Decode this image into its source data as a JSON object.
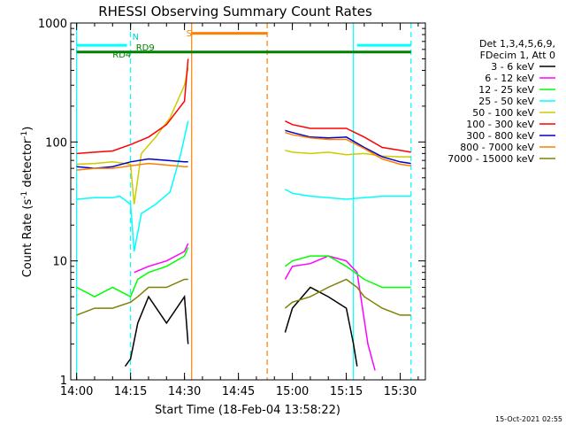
{
  "chart_data": {
    "type": "line",
    "title": "RHESSI Observing Summary Count Rates",
    "xlabel": "Start Time (18-Feb-04 13:58:22)",
    "ylabel_main": "Count Rate (s",
    "ylabel_sup1": "-1",
    "ylabel_mid": " detector",
    "ylabel_sup2": "-1",
    "ylabel_end": ")",
    "y_scale": "log",
    "ylim": [
      1,
      1000
    ],
    "xlim": [
      "13:58:22",
      "15:37:00"
    ],
    "x_ticks": [
      "14:00",
      "14:15",
      "14:30",
      "14:45",
      "15:00",
      "15:15",
      "15:30"
    ],
    "y_ticks": [
      "1",
      "10",
      "100",
      "1000"
    ],
    "legend_header": [
      "Det 1,3,4,5,6,9,",
      "FDecim 1, Att 0"
    ],
    "footer_date": "15-Oct-2021 02:55",
    "legend_position": "right",
    "flag_labels": {
      "n": "N",
      "s": "S",
      "rd4": "RD4",
      "rd9": "RD9"
    },
    "series": [
      {
        "name": "3 - 6 keV",
        "color": "#000000",
        "segments": [
          [
            [
              "14:13:30",
              1.3
            ],
            [
              "14:15",
              1.5
            ],
            [
              "14:17",
              3
            ],
            [
              "14:20",
              5
            ],
            [
              "14:25",
              3
            ],
            [
              "14:30",
              5
            ],
            [
              "14:31",
              2
            ]
          ],
          [
            [
              "14:58",
              2.5
            ],
            [
              "15:00",
              4
            ],
            [
              "15:05",
              6
            ],
            [
              "15:10",
              5
            ],
            [
              "15:15",
              4
            ],
            [
              "15:17",
              2
            ],
            [
              "15:18",
              1.3
            ]
          ]
        ]
      },
      {
        "name": "6 - 12 keV",
        "color": "#ff00ff",
        "segments": [
          [
            [
              "14:16",
              8
            ],
            [
              "14:20",
              9
            ],
            [
              "14:25",
              10
            ],
            [
              "14:30",
              12
            ],
            [
              "14:31",
              14
            ]
          ],
          [
            [
              "14:58",
              7
            ],
            [
              "15:00",
              9
            ],
            [
              "15:05",
              9.5
            ],
            [
              "15:10",
              11
            ],
            [
              "15:15",
              10
            ],
            [
              "15:18",
              8
            ],
            [
              "15:21",
              2
            ],
            [
              "15:23",
              1.2
            ]
          ]
        ]
      },
      {
        "name": "12 - 25 keV",
        "color": "#00ff00",
        "segments": [
          [
            [
              "14:00",
              6
            ],
            [
              "14:05",
              5
            ],
            [
              "14:10",
              6
            ],
            [
              "14:15",
              5
            ],
            [
              "14:17",
              7
            ],
            [
              "14:20",
              8
            ],
            [
              "14:25",
              9
            ],
            [
              "14:30",
              11
            ],
            [
              "14:31",
              13
            ]
          ],
          [
            [
              "14:58",
              9
            ],
            [
              "15:00",
              10
            ],
            [
              "15:05",
              11
            ],
            [
              "15:10",
              11
            ],
            [
              "15:15",
              9
            ],
            [
              "15:20",
              7
            ],
            [
              "15:25",
              6
            ],
            [
              "15:30",
              6
            ],
            [
              "15:33",
              6
            ]
          ]
        ]
      },
      {
        "name": "25 - 50 keV",
        "color": "#00ffff",
        "segments": [
          [
            [
              "14:00",
              33
            ],
            [
              "14:05",
              34
            ],
            [
              "14:10",
              34
            ],
            [
              "14:12",
              35
            ],
            [
              "14:15",
              30
            ],
            [
              "14:16",
              12
            ],
            [
              "14:18",
              25
            ],
            [
              "14:22",
              30
            ],
            [
              "14:26",
              38
            ],
            [
              "14:29",
              80
            ],
            [
              "14:31",
              150
            ]
          ],
          [
            [
              "14:58",
              40
            ],
            [
              "15:00",
              37
            ],
            [
              "15:05",
              35
            ],
            [
              "15:10",
              34
            ],
            [
              "15:15",
              33
            ],
            [
              "15:20",
              34
            ],
            [
              "15:25",
              35
            ],
            [
              "15:30",
              35
            ],
            [
              "15:33",
              35
            ]
          ]
        ]
      },
      {
        "name": "50 - 100 keV",
        "color": "#cccc00",
        "segments": [
          [
            [
              "14:00",
              65
            ],
            [
              "14:05",
              66
            ],
            [
              "14:10",
              68
            ],
            [
              "14:15",
              65
            ],
            [
              "14:16",
              30
            ],
            [
              "14:18",
              80
            ],
            [
              "14:22",
              110
            ],
            [
              "14:26",
              160
            ],
            [
              "14:30",
              300
            ],
            [
              "14:31",
              420
            ]
          ],
          [
            [
              "14:58",
              85
            ],
            [
              "15:00",
              82
            ],
            [
              "15:05",
              80
            ],
            [
              "15:10",
              82
            ],
            [
              "15:15",
              78
            ],
            [
              "15:20",
              80
            ],
            [
              "15:25",
              76
            ],
            [
              "15:30",
              75
            ],
            [
              "15:33",
              75
            ]
          ]
        ]
      },
      {
        "name": "100 - 300 keV",
        "color": "#ff0000",
        "segments": [
          [
            [
              "14:00",
              80
            ],
            [
              "14:05",
              82
            ],
            [
              "14:10",
              84
            ],
            [
              "14:15",
              95
            ],
            [
              "14:20",
              110
            ],
            [
              "14:25",
              140
            ],
            [
              "14:30",
              220
            ],
            [
              "14:31",
              500
            ]
          ],
          [
            [
              "14:58",
              150
            ],
            [
              "15:00",
              140
            ],
            [
              "15:05",
              130
            ],
            [
              "15:10",
              130
            ],
            [
              "15:15",
              130
            ],
            [
              "15:20",
              110
            ],
            [
              "15:25",
              90
            ],
            [
              "15:30",
              85
            ],
            [
              "15:33",
              82
            ]
          ]
        ]
      },
      {
        "name": "300 - 800 keV",
        "color": "#0000cc",
        "segments": [
          [
            [
              "14:00",
              62
            ],
            [
              "14:05",
              60
            ],
            [
              "14:10",
              62
            ],
            [
              "14:15",
              68
            ],
            [
              "14:20",
              72
            ],
            [
              "14:25",
              70
            ],
            [
              "14:30",
              68
            ],
            [
              "14:31",
              68
            ]
          ],
          [
            [
              "14:58",
              125
            ],
            [
              "15:00",
              120
            ],
            [
              "15:05",
              110
            ],
            [
              "15:10",
              108
            ],
            [
              "15:15",
              110
            ],
            [
              "15:20",
              90
            ],
            [
              "15:25",
              75
            ],
            [
              "15:30",
              68
            ],
            [
              "15:33",
              66
            ]
          ]
        ]
      },
      {
        "name": "800 - 7000 keV",
        "color": "#ff7f00",
        "segments": [
          [
            [
              "14:00",
              58
            ],
            [
              "14:05",
              60
            ],
            [
              "14:10",
              60
            ],
            [
              "14:15",
              63
            ],
            [
              "14:20",
              66
            ],
            [
              "14:25",
              64
            ],
            [
              "14:30",
              62
            ],
            [
              "14:31",
              62
            ]
          ],
          [
            [
              "14:58",
              120
            ],
            [
              "15:00",
              115
            ],
            [
              "15:05",
              108
            ],
            [
              "15:10",
              105
            ],
            [
              "15:15",
              105
            ],
            [
              "15:20",
              88
            ],
            [
              "15:25",
              72
            ],
            [
              "15:30",
              65
            ],
            [
              "15:33",
              63
            ]
          ]
        ]
      },
      {
        "name": "7000 - 15000 keV",
        "color": "#808000",
        "segments": [
          [
            [
              "14:00",
              3.5
            ],
            [
              "14:05",
              4
            ],
            [
              "14:10",
              4
            ],
            [
              "14:15",
              4.5
            ],
            [
              "14:17",
              5
            ],
            [
              "14:20",
              6
            ],
            [
              "14:25",
              6
            ],
            [
              "14:30",
              7
            ],
            [
              "14:31",
              7
            ]
          ],
          [
            [
              "14:58",
              4
            ],
            [
              "15:00",
              4.5
            ],
            [
              "15:05",
              5
            ],
            [
              "15:10",
              6
            ],
            [
              "15:15",
              7
            ],
            [
              "15:18",
              6
            ],
            [
              "15:20",
              5
            ],
            [
              "15:25",
              4
            ],
            [
              "15:30",
              3.5
            ],
            [
              "15:33",
              3.5
            ]
          ]
        ]
      }
    ],
    "flags": {
      "saa_cyan": [
        {
          "from": "14:00",
          "to": "14:14",
          "y": 650
        },
        {
          "from": "15:18",
          "to": "15:33",
          "y": 650
        }
      ],
      "green_line": {
        "from": "14:00",
        "to": "15:33",
        "y": 570
      },
      "orange_bar": {
        "from": "14:32",
        "to": "14:53",
        "y": 820
      },
      "vertical_lines": [
        {
          "t": "14:00",
          "color": "#00ffff",
          "style": "solid"
        },
        {
          "t": "14:15",
          "color": "#00ffff",
          "style": "dashed"
        },
        {
          "t": "14:32",
          "color": "#ff7f00",
          "style": "solid"
        },
        {
          "t": "14:53",
          "color": "#ff7f00",
          "style": "dashed"
        },
        {
          "t": "15:17",
          "color": "#00ffff",
          "style": "solid"
        },
        {
          "t": "15:33",
          "color": "#00ffff",
          "style": "dashed"
        }
      ]
    }
  }
}
